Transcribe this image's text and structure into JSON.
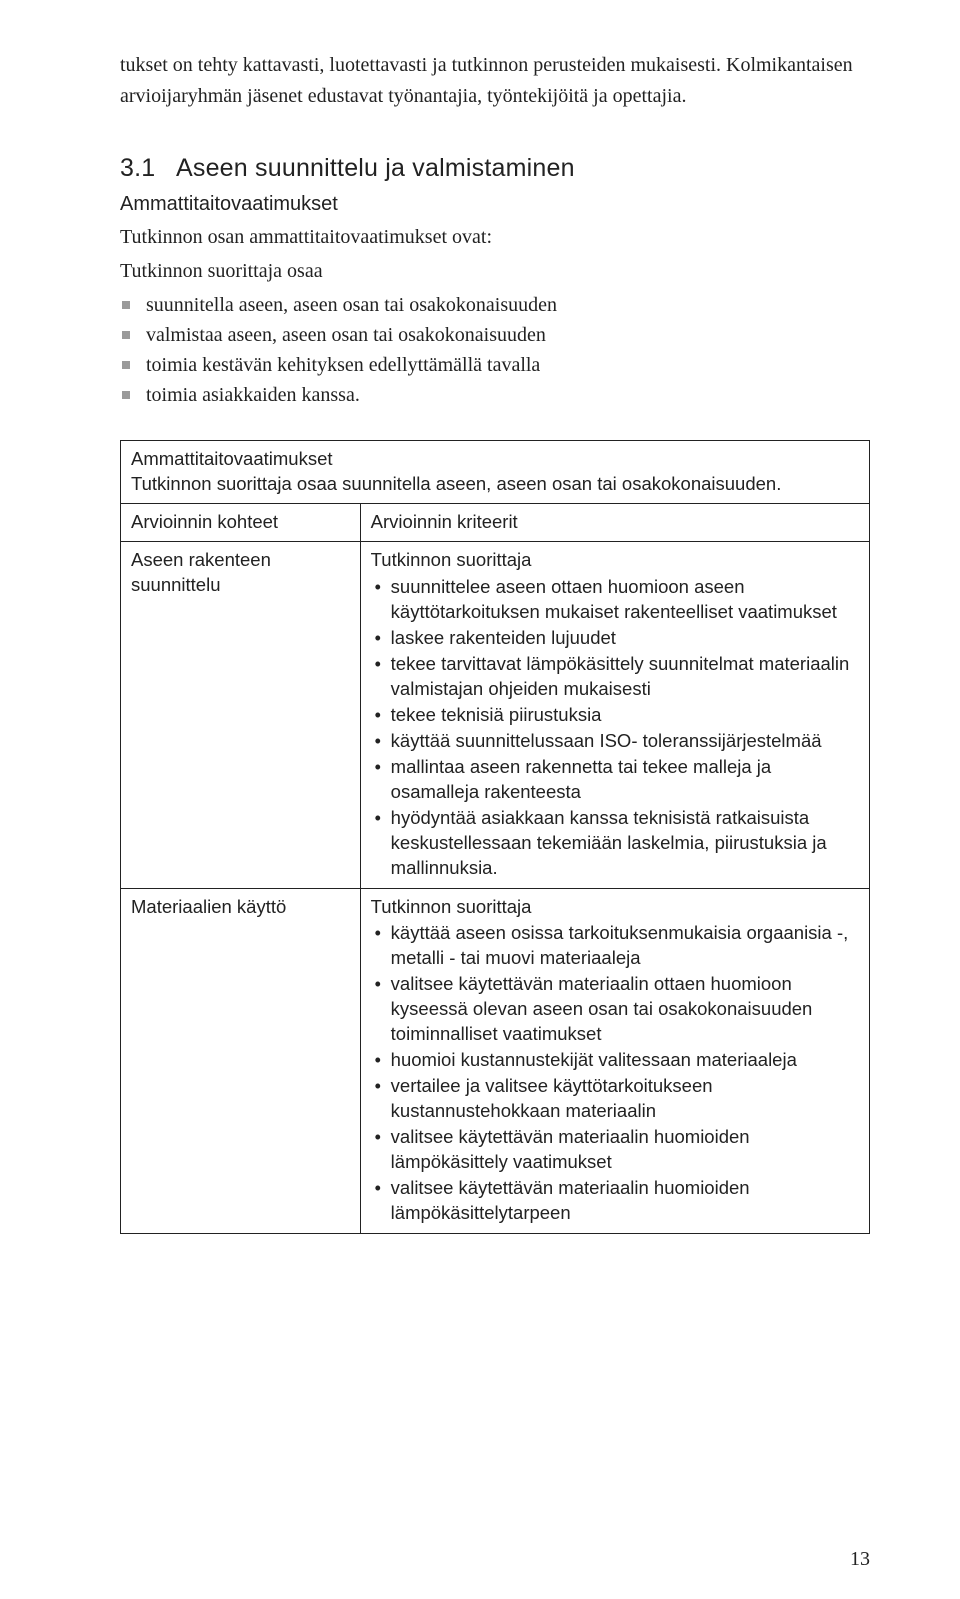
{
  "intro_paragraph": "tukset on tehty kattavasti, luotettavasti ja tutkinnon perusteiden mukaisesti. Kolmikantaisen arvioijaryhmän jäsenet edustavat työnantajia, työntekijöitä ja opettajia.",
  "heading_number": "3.1",
  "heading_title": "Aseen suunnittelu ja valmistaminen",
  "subheading": "Ammattitaitovaatimukset",
  "requirements_intro": "Tutkinnon osan ammattitaitovaatimukset ovat:",
  "requirements_lead": "Tutkinnon suorittaja osaa",
  "requirements_list": [
    "suunnitella aseen, aseen osan tai osakokonaisuuden",
    "valmistaa aseen, aseen osan tai osakokonaisuuden",
    "toimia kestävän kehityksen edellyttämällä tavalla",
    "toimia asiakkaiden kanssa."
  ],
  "table_caption_line1": "Ammattitaitovaatimukset",
  "table_caption_line2": "Tutkinnon suorittaja osaa suunnitella aseen, aseen osan tai osakokonaisuuden.",
  "col_left_header": "Arvioinnin kohteet",
  "col_right_header": "Arvioinnin kriteerit",
  "row1_label": "Aseen rakenteen suunnittelu",
  "row1_lead": "Tutkinnon suorittaja",
  "row1_items": [
    "suunnittelee aseen ottaen huomioon aseen käyttötarkoituksen mukaiset rakenteelliset vaatimukset",
    "laskee rakenteiden lujuudet",
    "tekee tarvittavat lämpökäsittely suunnitelmat materiaalin valmistajan ohjeiden mukaisesti",
    "tekee teknisiä piirustuksia",
    "käyttää suunnittelussaan ISO- toleranssijärjestelmää",
    "mallintaa aseen rakennetta tai tekee malleja ja osamalleja rakenteesta",
    "hyödyntää asiakkaan kanssa teknisistä ratkaisuista keskustellessaan tekemiään laskelmia, piirustuksia ja mallinnuksia."
  ],
  "row2_label": "Materiaalien käyttö",
  "row2_lead": "Tutkinnon suorittaja",
  "row2_items": [
    "käyttää aseen osissa tarkoituksenmukaisia orgaanisia -, metalli - tai muovi materiaaleja",
    "valitsee käytettävän materiaalin ottaen huomioon kyseessä olevan aseen osan tai osakokonaisuuden toiminnalliset vaatimukset",
    "huomioi kustannustekijät valitessaan materiaaleja",
    "vertailee ja valitsee käyttötarkoitukseen kustannustehokkaan materiaalin",
    "valitsee käytettävän materiaalin huomioiden lämpökäsittely vaatimukset",
    "valitsee käytettävän materiaalin huomioiden lämpökäsittelytarpeen"
  ],
  "page_number": "13"
}
